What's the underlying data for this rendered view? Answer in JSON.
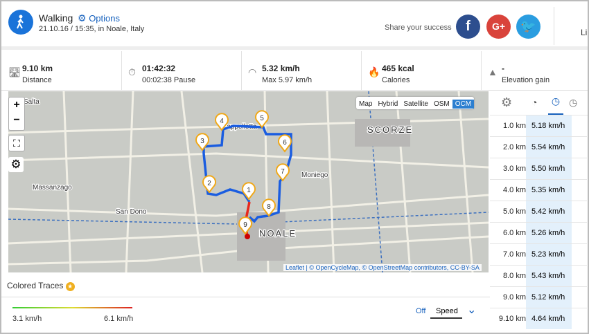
{
  "header": {
    "activity": "Walking",
    "options": "Options",
    "date": "21.10.16 / 15:35, in Noale, Italy",
    "share": "Share your success",
    "like": "Lik"
  },
  "stats": [
    {
      "value": "9.10 km",
      "label": "Distance"
    },
    {
      "value": "01:42:32",
      "label": "00:02:38 Pause"
    },
    {
      "value": "5.32 km/h",
      "label": "Max 5.97 km/h"
    },
    {
      "value": "465 kcal",
      "label": "Calories"
    },
    {
      "value": "-",
      "label": "Elevation gain"
    }
  ],
  "map": {
    "layers": [
      "Map",
      "Hybrid",
      "Satellite",
      "OSM",
      "OCM"
    ],
    "active_layer": "OCM",
    "places": [
      "Salta",
      "Cappelletta",
      "SCORZE",
      "Moniego",
      "Massanzago",
      "San Dono",
      "NOALE"
    ],
    "markers": [
      "1",
      "2",
      "3",
      "4",
      "5",
      "6",
      "7",
      "8",
      "9"
    ],
    "attribution": "Leaflet | © OpenCycleMap, © OpenStreetMap contributors, CC-BY-SA"
  },
  "traces": {
    "title": "Colored Traces",
    "min": "3.1 km/h",
    "max": "6.1 km/h",
    "off": "Off",
    "mode": "Speed"
  },
  "splits": {
    "rows": [
      [
        "1.0 km",
        "5.18 km/h"
      ],
      [
        "2.0 km",
        "5.54 km/h"
      ],
      [
        "3.0 km",
        "5.50 km/h"
      ],
      [
        "4.0 km",
        "5.35 km/h"
      ],
      [
        "5.0 km",
        "5.42 km/h"
      ],
      [
        "6.0 km",
        "5.26 km/h"
      ],
      [
        "7.0 km",
        "5.23 km/h"
      ],
      [
        "8.0 km",
        "5.43 km/h"
      ],
      [
        "9.0 km",
        "5.12 km/h"
      ],
      [
        "9.10 km",
        "4.64 km/h"
      ]
    ]
  }
}
